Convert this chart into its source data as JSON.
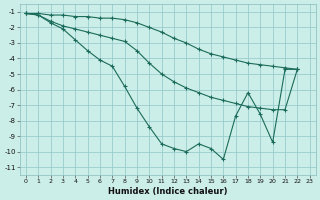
{
  "xlabel": "Humidex (Indice chaleur)",
  "ylabel": "",
  "bg_color": "#cceee8",
  "grid_color": "#99cccc",
  "line_color": "#1a6b5a",
  "marker_color": "#1a6b5a",
  "xlim": [
    -0.5,
    23.5
  ],
  "ylim": [
    -11.5,
    -0.5
  ],
  "yticks": [
    -1,
    -2,
    -3,
    -4,
    -5,
    -6,
    -7,
    -8,
    -9,
    -10,
    -11
  ],
  "xticks": [
    0,
    1,
    2,
    3,
    4,
    5,
    6,
    7,
    8,
    9,
    10,
    11,
    12,
    13,
    14,
    15,
    16,
    17,
    18,
    19,
    20,
    21,
    22,
    23
  ],
  "series": [
    {
      "x": [
        0,
        1,
        2,
        3,
        4,
        5,
        6,
        7,
        8,
        9,
        10,
        11,
        12,
        13,
        14,
        15,
        16,
        17,
        18,
        19,
        20,
        21,
        22
      ],
      "y": [
        -1.1,
        -1.1,
        -1.2,
        -1.2,
        -1.3,
        -1.3,
        -1.4,
        -1.4,
        -1.5,
        -1.7,
        -2.0,
        -2.3,
        -2.7,
        -3.0,
        -3.4,
        -3.7,
        -3.9,
        -4.1,
        -4.3,
        -4.4,
        -4.5,
        -4.6,
        -4.7
      ]
    },
    {
      "x": [
        0,
        1,
        2,
        3,
        4,
        5,
        6,
        7,
        8,
        9,
        10,
        11,
        12,
        13,
        14,
        15,
        16,
        17,
        18,
        19,
        20,
        21,
        22
      ],
      "y": [
        -1.1,
        -1.2,
        -1.6,
        -1.9,
        -2.1,
        -2.3,
        -2.5,
        -2.7,
        -2.9,
        -3.5,
        -4.3,
        -5.0,
        -5.5,
        -5.9,
        -6.2,
        -6.5,
        -6.7,
        -6.9,
        -7.1,
        -7.2,
        -7.3,
        -7.3,
        -4.7
      ]
    },
    {
      "x": [
        0,
        1,
        2,
        3,
        4,
        5,
        6,
        7,
        8,
        9,
        10,
        11,
        12,
        13,
        14,
        15,
        16,
        17,
        18,
        19,
        20,
        21,
        22
      ],
      "y": [
        -1.1,
        -1.2,
        -1.7,
        -2.1,
        -2.8,
        -3.5,
        -4.1,
        -4.5,
        -5.8,
        -7.2,
        -8.4,
        -9.5,
        -9.8,
        -10.0,
        -9.5,
        -9.8,
        -10.5,
        -7.7,
        -6.2,
        -7.6,
        -9.4,
        -4.7,
        -4.7
      ]
    }
  ]
}
